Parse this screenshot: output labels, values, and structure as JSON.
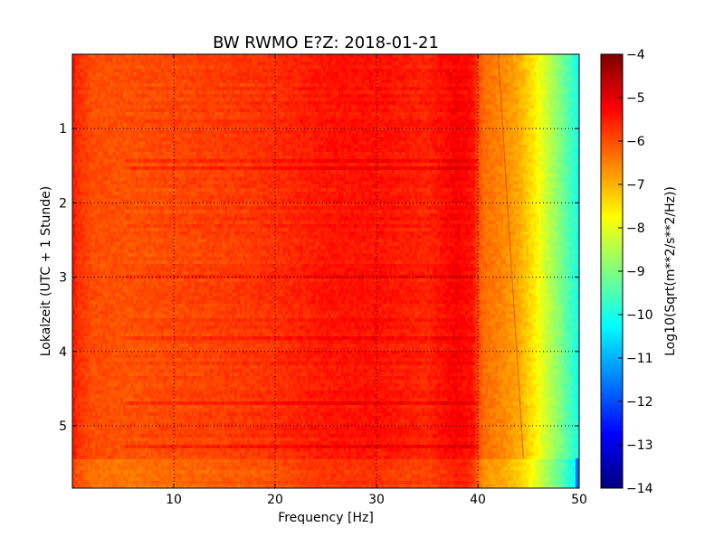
{
  "chart_data": {
    "type": "heatmap",
    "title": "BW RWMO E?Z: 2018-01-21",
    "xlabel": "Frequency [Hz]",
    "ylabel": "Lokalzeit (UTC + 1 Stunde)",
    "xlim": [
      0,
      50
    ],
    "ylim": [
      5.84,
      0
    ],
    "y_inverted": true,
    "x_ticks": [
      10,
      20,
      30,
      40,
      50
    ],
    "x_tick_labels": [
      "10",
      "20",
      "30",
      "40",
      "50"
    ],
    "y_ticks": [
      1,
      2,
      3,
      4,
      5
    ],
    "y_tick_labels": [
      "1",
      "2",
      "3",
      "4",
      "5"
    ],
    "grid": true,
    "colorbar": {
      "label": "Log10(Sqrt(m**2/s**2/Hz))",
      "range": [
        -14,
        -4
      ],
      "ticks": [
        -4,
        -5,
        -6,
        -7,
        -8,
        -9,
        -10,
        -11,
        -12,
        -13,
        -14
      ],
      "tick_labels": [
        "−4",
        "−5",
        "−6",
        "−7",
        "−8",
        "−9",
        "−10",
        "−11",
        "−12",
        "−13",
        "−14"
      ],
      "colormap": "jet"
    },
    "spectrum_profile": {
      "frequency_hz": [
        0,
        0.5,
        2,
        5,
        10,
        15,
        20,
        25,
        30,
        35,
        38,
        39.5,
        40.5,
        42,
        44,
        45.5,
        46.5,
        48,
        50
      ],
      "log_amplitude": [
        -5.4,
        -5.7,
        -6.0,
        -6.05,
        -5.95,
        -5.85,
        -5.7,
        -5.45,
        -5.4,
        -5.6,
        -5.2,
        -5.4,
        -6.3,
        -6.5,
        -6.9,
        -7.5,
        -8.1,
        -8.9,
        -10.1
      ]
    },
    "time_bands": [
      {
        "time_start": 0.0,
        "time_end": 5.44,
        "offset": 0.0
      },
      {
        "time_start": 5.44,
        "time_end": 5.84,
        "offset": -0.35
      }
    ],
    "artifacts": {
      "diagonal_line": {
        "freq_start": 42,
        "time_start": 0.0,
        "freq_end": 44.5,
        "time_end": 5.44
      },
      "right_edge_blue_band": {
        "time_start": 5.44,
        "time_end": 5.84,
        "freq": 50
      }
    },
    "colors": {
      "grid": "#000000",
      "background": "#ffffff"
    }
  }
}
